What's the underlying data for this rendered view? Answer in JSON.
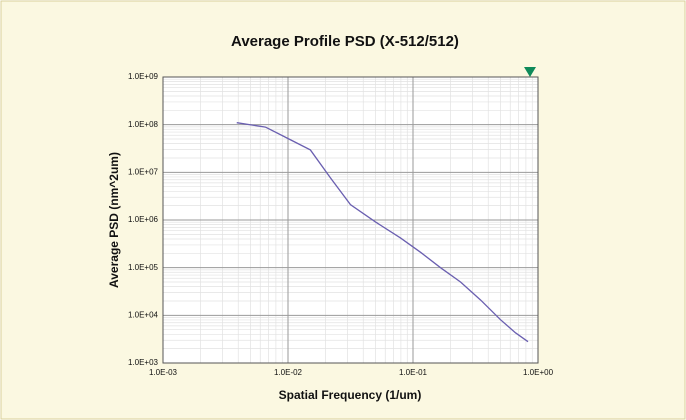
{
  "chart_data": {
    "type": "line",
    "title": "Average Profile PSD (X-512/512)",
    "x_label": "Spatial Frequency (1/um)",
    "y_label": "Average PSD (nm^2um)",
    "x": [
      0.00389,
      0.0066,
      0.0105,
      0.0151,
      0.0219,
      0.0316,
      0.0501,
      0.0794,
      0.115,
      0.166,
      0.24,
      0.347,
      0.501,
      0.661,
      0.832
    ],
    "series": [
      {
        "color": "#6a5fb0",
        "values": [
          110000000,
          89000000,
          48000000,
          29500000,
          7600000,
          2100000,
          910000,
          420000,
          210000,
          100000,
          50000,
          21000,
          8100,
          4300,
          2800
        ]
      }
    ],
    "xscale": "log",
    "yscale": "log",
    "xlim": [
      0.001,
      1
    ],
    "ylim": [
      1000,
      1000000000
    ],
    "xticks": [
      {
        "value": 0.001,
        "label": "1.0E-03"
      },
      {
        "value": 0.01,
        "label": "1.0E-02"
      },
      {
        "value": 0.1,
        "label": "1.0E-01"
      },
      {
        "value": 1,
        "label": "1.0E+00"
      }
    ],
    "yticks": [
      {
        "value": 1000,
        "label": "1.0E+03"
      },
      {
        "value": 10000,
        "label": "1.0E+04"
      },
      {
        "value": 100000,
        "label": "1.0E+05"
      },
      {
        "value": 1000000,
        "label": "1.0E+06"
      },
      {
        "value": 10000000,
        "label": "1.0E+07"
      },
      {
        "value": 100000000,
        "label": "1.0E+08"
      },
      {
        "value": 1000000000,
        "label": "1.0E+09"
      }
    ],
    "grid": true,
    "minor_grid": true
  }
}
